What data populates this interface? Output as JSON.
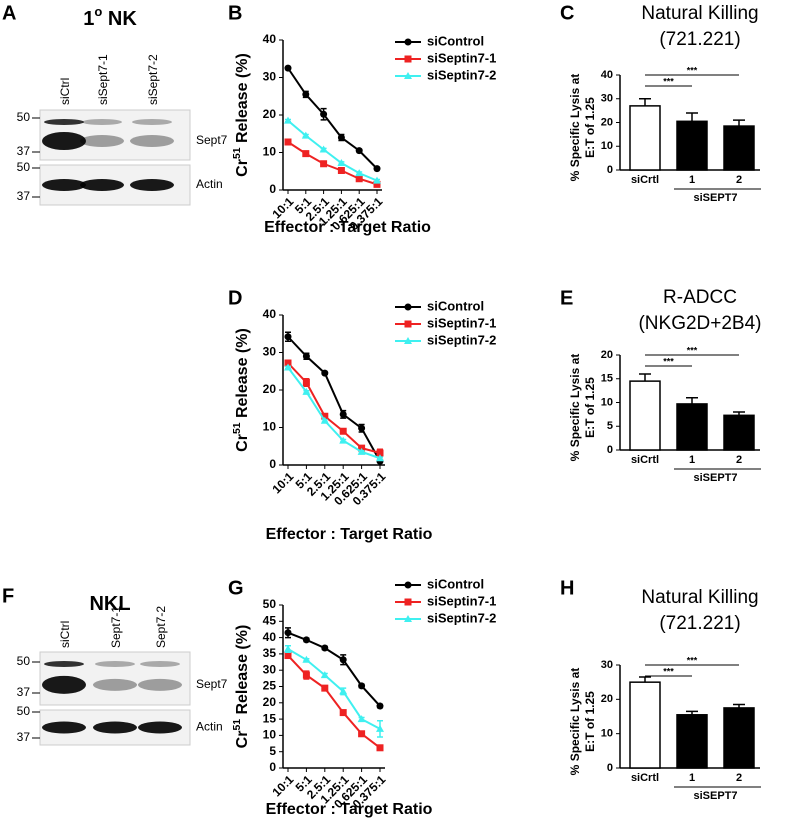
{
  "blots": [
    {
      "label": "A",
      "title": [
        "1",
        "o",
        " NK"
      ],
      "lanes": [
        "siCtrl",
        "siSept7-1",
        "siSept7-2"
      ],
      "markers": [
        [
          50,
          37
        ],
        [
          50,
          37
        ]
      ],
      "bands": [
        "Sept7",
        "Actin"
      ]
    },
    {
      "label": "F",
      "title": [
        "NKL"
      ],
      "lanes": [
        "siCtrl",
        "Sept7-1",
        "Sept7-2"
      ],
      "markers": [
        [
          50,
          37
        ],
        [
          50,
          37
        ]
      ],
      "bands": [
        "Sept7",
        "Actin"
      ]
    }
  ],
  "chart_data": [
    {
      "label": "B",
      "type": "line",
      "ylabel": [
        "Cr",
        "51",
        " Release (%)"
      ],
      "xlabel": "Effector : Target Ratio",
      "categories": [
        "10:1",
        "5:1",
        "2.5:1",
        "1.25:1",
        "0.625:1",
        "0.375:1"
      ],
      "ylim": [
        0,
        40
      ],
      "yticks": [
        0,
        10,
        20,
        30,
        40
      ],
      "legend": "upper right",
      "series": [
        {
          "name": "siControl",
          "color": "#000000",
          "marker": "circle",
          "values": [
            32.5,
            25.5,
            20.2,
            14,
            10.5,
            5.7
          ],
          "errors": [
            0.3,
            0.8,
            1.5,
            0.8,
            0.3,
            0.3
          ]
        },
        {
          "name": "siSeptin7-1",
          "color": "#ee2222",
          "marker": "square",
          "values": [
            12.8,
            9.7,
            7,
            5.2,
            3,
            1.5
          ],
          "errors": [
            0.3,
            0.3,
            0.3,
            0.3,
            0.3,
            0.3
          ]
        },
        {
          "name": "siSeptin7-2",
          "color": "#3ff0f0",
          "marker": "triangle",
          "values": [
            18.5,
            14.5,
            10.8,
            7.2,
            4.5,
            2.5
          ],
          "errors": [
            0.3,
            0.3,
            0.3,
            0.3,
            0.3,
            0.3
          ]
        }
      ]
    },
    {
      "label": "C",
      "type": "bar",
      "title": "Natural Killing",
      "subtitle": "(721.221)",
      "ylabel": [
        "% Specific Lysis at",
        "E:T of 1.25"
      ],
      "categories": [
        "siCrtl",
        "1",
        "2"
      ],
      "values": [
        27,
        20.5,
        18.5
      ],
      "errors": [
        3,
        3.5,
        2.5
      ],
      "colors": [
        "#ffffff",
        "#000000",
        "#000000"
      ],
      "ylim": [
        0,
        40
      ],
      "yticks": [
        0,
        10,
        20,
        30,
        40
      ],
      "group": {
        "label": "siSEPT7",
        "categories": [
          1,
          2
        ]
      },
      "comparisons": [
        {
          "label": "***",
          "between": [
            0,
            1
          ]
        },
        {
          "label": "***",
          "between": [
            0,
            2
          ]
        }
      ]
    },
    {
      "label": "D",
      "type": "line",
      "ylabel": [
        "Cr",
        "51",
        " Release (%)"
      ],
      "xlabel": "Effector : Target Ratio",
      "categories": [
        "10:1",
        "5:1",
        "2.5:1",
        "1.25:1",
        "0.625:1",
        "0.375:1"
      ],
      "ylim": [
        0,
        40
      ],
      "yticks": [
        0,
        10,
        20,
        30,
        40
      ],
      "legend": "upper right",
      "series": [
        {
          "name": "siControl",
          "color": "#000000",
          "marker": "circle",
          "values": [
            34.2,
            29,
            24.5,
            13.5,
            9.8,
            1
          ],
          "errors": [
            1.2,
            0.8,
            0.3,
            1,
            1,
            0.3
          ]
        },
        {
          "name": "siSeptin7-1",
          "color": "#ee2222",
          "marker": "square",
          "values": [
            27.2,
            22,
            13,
            9,
            4.5,
            3.2
          ],
          "errors": [
            0.5,
            1,
            0.3,
            0.3,
            0.5,
            1
          ]
        },
        {
          "name": "siSeptin7-2",
          "color": "#3ff0f0",
          "marker": "triangle",
          "values": [
            26,
            19.5,
            11.8,
            6.5,
            3.5,
            1.8
          ],
          "errors": [
            0.3,
            0.3,
            0.3,
            0.3,
            0.3,
            0.3
          ]
        }
      ]
    },
    {
      "label": "E",
      "type": "bar",
      "title": "R-ADCC",
      "subtitle": "(NKG2D+2B4)",
      "ylabel": [
        "% Specific Lysis at",
        "E:T of 1.25"
      ],
      "categories": [
        "siCrtl",
        "1",
        "2"
      ],
      "values": [
        14.5,
        9.7,
        7.3
      ],
      "errors": [
        1.5,
        1.3,
        0.7
      ],
      "colors": [
        "#ffffff",
        "#000000",
        "#000000"
      ],
      "ylim": [
        0,
        20
      ],
      "yticks": [
        0,
        5,
        10,
        15,
        20
      ],
      "group": {
        "label": "siSEPT7",
        "categories": [
          1,
          2
        ]
      },
      "comparisons": [
        {
          "label": "***",
          "between": [
            0,
            1
          ]
        },
        {
          "label": "***",
          "between": [
            0,
            2
          ]
        }
      ]
    },
    {
      "label": "G",
      "type": "line",
      "ylabel": [
        "Cr",
        "51",
        " Release (%)"
      ],
      "xlabel": "Effector : Target Ratio",
      "categories": [
        "10:1",
        "5:1",
        "2.5:1",
        "1.25:1",
        "0.625:1",
        "0.375:1"
      ],
      "ylim": [
        0,
        50
      ],
      "yticks": [
        0,
        5,
        10,
        15,
        20,
        25,
        30,
        35,
        40,
        45,
        50
      ],
      "legend": "upper right",
      "series": [
        {
          "name": "siControl",
          "color": "#000000",
          "marker": "circle",
          "values": [
            41.5,
            39.3,
            36.8,
            33.2,
            25.2,
            19
          ],
          "errors": [
            1.5,
            0.5,
            0.5,
            1.5,
            0.5,
            0.5
          ]
        },
        {
          "name": "siSeptin7-1",
          "color": "#ee2222",
          "marker": "square",
          "values": [
            34.5,
            28.5,
            24.5,
            17,
            10.5,
            6.2
          ],
          "errors": [
            0.5,
            1.2,
            0.5,
            0.3,
            0.5,
            0.3
          ]
        },
        {
          "name": "siSeptin7-2",
          "color": "#3ff0f0",
          "marker": "triangle",
          "values": [
            36.5,
            33.2,
            28.5,
            23.5,
            15,
            12
          ],
          "errors": [
            1,
            0.3,
            0.5,
            1,
            0.5,
            2.5
          ]
        }
      ]
    },
    {
      "label": "H",
      "type": "bar",
      "title": "Natural Killing",
      "subtitle": "(721.221)",
      "ylabel": [
        "% Specific Lysis at",
        "E:T of 1.25"
      ],
      "categories": [
        "siCrtl",
        "1",
        "2"
      ],
      "values": [
        25,
        15.5,
        17.5
      ],
      "errors": [
        1.5,
        1,
        1
      ],
      "colors": [
        "#ffffff",
        "#000000",
        "#000000"
      ],
      "ylim": [
        0,
        30
      ],
      "yticks": [
        0,
        10,
        20,
        30
      ],
      "group": {
        "label": "siSEPT7",
        "categories": [
          1,
          2
        ]
      },
      "comparisons": [
        {
          "label": "***",
          "between": [
            0,
            1
          ]
        },
        {
          "label": "***",
          "between": [
            0,
            2
          ]
        }
      ]
    }
  ]
}
